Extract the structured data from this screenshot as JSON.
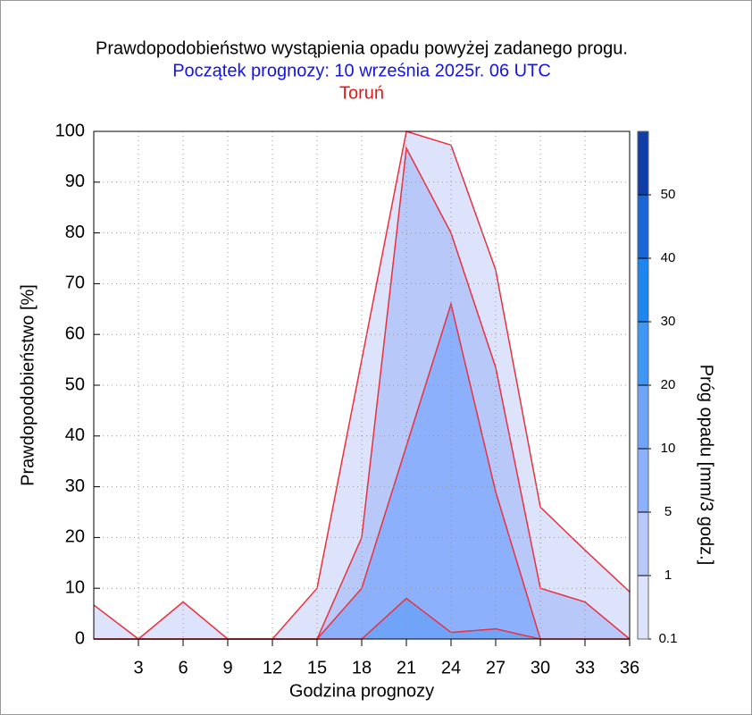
{
  "chart_data": {
    "type": "area",
    "title": "Prawdopodobieństwo wystąpienia opadu powyżej zadanego progu.",
    "subtitle": "Początek prognozy: 10 września 2025r. 06 UTC",
    "location": "Toruń",
    "x_label": "Godzina prognozy",
    "y_label": "Prawdopodobieństwo [%]",
    "x": [
      0,
      3,
      6,
      9,
      12,
      15,
      18,
      21,
      24,
      27,
      30,
      33,
      36
    ],
    "xlim": [
      0,
      36
    ],
    "xticks": [
      3,
      6,
      9,
      12,
      15,
      18,
      21,
      24,
      27,
      30,
      33,
      36
    ],
    "ylim": [
      0,
      100
    ],
    "yticks": [
      0,
      10,
      20,
      30,
      40,
      50,
      60,
      70,
      80,
      90,
      100
    ],
    "grid": true,
    "line_color": "#e8313f",
    "series": [
      {
        "color": "#dce3fb",
        "values": [
          6.7,
          0,
          7.3,
          0,
          0,
          10,
          55,
          100,
          97.3,
          72.7,
          26,
          17.5,
          9.3
        ]
      },
      {
        "color": "#b8c8f8",
        "values": [
          0,
          0,
          0,
          0,
          0,
          0,
          20,
          96.7,
          80,
          53.5,
          10,
          7.3,
          0
        ]
      },
      {
        "color": "#8cb0fb",
        "values": [
          0,
          0,
          0,
          0,
          0,
          0,
          10,
          38,
          66,
          29,
          0,
          0,
          0
        ]
      },
      {
        "color": "#6fa4f9",
        "values": [
          0,
          0,
          0,
          0,
          0,
          0,
          0,
          8,
          1.3,
          2,
          0,
          0,
          0
        ]
      }
    ],
    "colorbar": {
      "label": "Próg opadu [mm/3 godz.]",
      "ticks": [
        0.1,
        1,
        5,
        10,
        20,
        30,
        40,
        50
      ],
      "colors": [
        "#dce3fb",
        "#b8c8f8",
        "#8cb0fb",
        "#6fa4f9",
        "#3d97f3",
        "#1d86ef",
        "#1a66d8",
        "#0f3fa6"
      ]
    }
  }
}
